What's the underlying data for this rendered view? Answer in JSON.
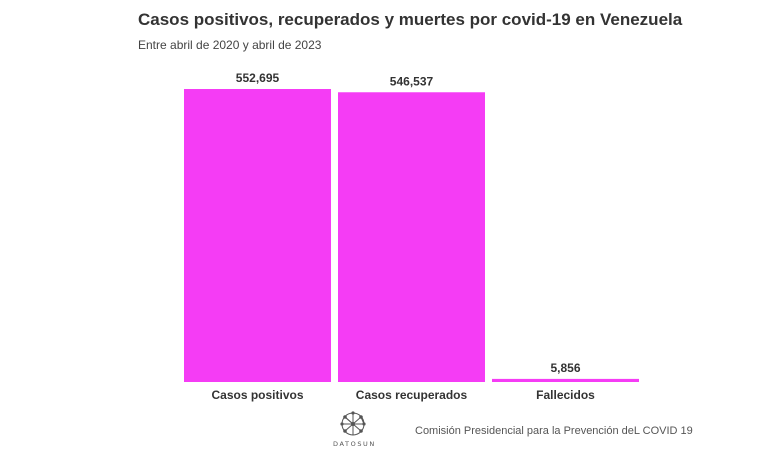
{
  "chart_data": {
    "type": "bar",
    "title": "Casos positivos, recuperados y muertes por covid-19 en Venezuela",
    "subtitle": "Entre abril de 2020 y abril de 2023",
    "categories": [
      "Casos positivos",
      "Casos recuperados",
      "Fallecidos"
    ],
    "values": [
      552695,
      546537,
      5856
    ],
    "data_labels": [
      "552,695",
      "546,537",
      "5,856"
    ],
    "ylim": [
      0,
      552695
    ],
    "grid": false,
    "bar_color": "#f53cf5"
  },
  "footer": {
    "logo_text": "DATOSUN",
    "logo_icon": "network-globe-icon",
    "source": "Comisión Presidencial para la Prevención deL COVID 19"
  }
}
